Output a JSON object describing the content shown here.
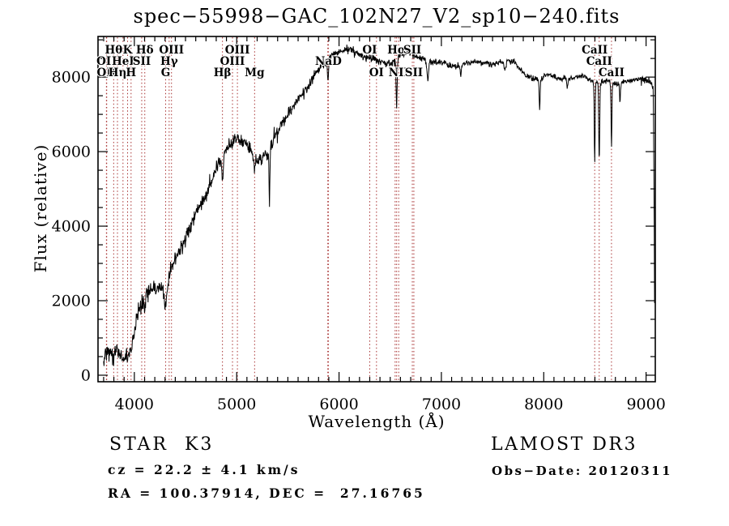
{
  "title": "spec−55998−GAC_102N27_V2_sp10−240.fits",
  "annotations": {
    "class_label": "STAR  K3",
    "cz": "cz = 22.2 ± 4.1 km/s",
    "radec": "RA = 100.37914, DEC =  27.16765",
    "survey": "LAMOST DR3",
    "obs_date": "Obs−Date: 20120311"
  },
  "chart_data": {
    "type": "line",
    "title": "spec−55998−GAC_102N27_V2_sp10−240.fits",
    "xlabel": "Wavelength (Å)",
    "ylabel": "Flux (relative)",
    "xlim": [
      3645,
      9090
    ],
    "ylim": [
      -175,
      9090
    ],
    "x_major_ticks": [
      4000,
      5000,
      6000,
      7000,
      8000,
      9000
    ],
    "x_minor_step": 100,
    "y_major_ticks": [
      0,
      2000,
      4000,
      6000,
      8000
    ],
    "y_minor_step": 500,
    "grid": false,
    "legend": "none",
    "series_color": "#000000",
    "marker_line_color": "#a83232",
    "spectral_lines": [
      {
        "label": "OII",
        "wavelength": 3727,
        "row": 2
      },
      {
        "label": "OII",
        "wavelength": 3730,
        "row": 3
      },
      {
        "label": "Hθ",
        "wavelength": 3798,
        "row": 1
      },
      {
        "label": "Hη",
        "wavelength": 3835,
        "row": 3
      },
      {
        "label": "HeI",
        "wavelength": 3889,
        "row": 2
      },
      {
        "label": "K",
        "wavelength": 3934,
        "row": 1
      },
      {
        "label": "H",
        "wavelength": 3968,
        "row": 3
      },
      {
        "label": "SII",
        "wavelength": 4072,
        "row": 2
      },
      {
        "label": "Hδ",
        "wavelength": 4102,
        "row": 1
      },
      {
        "label": "G",
        "wavelength": 4306,
        "row": 3
      },
      {
        "label": "Hγ",
        "wavelength": 4340,
        "row": 2
      },
      {
        "label": "OIII",
        "wavelength": 4363,
        "row": 1
      },
      {
        "label": "Hβ",
        "wavelength": 4861,
        "row": 3
      },
      {
        "label": "OIII",
        "wavelength": 4959,
        "row": 2
      },
      {
        "label": "OIII",
        "wavelength": 5007,
        "row": 1
      },
      {
        "label": "Mg",
        "wavelength": 5175,
        "row": 3
      },
      {
        "label": "",
        "wavelength": 5890,
        "row": 0
      },
      {
        "label": "NaD",
        "wavelength": 5896,
        "row": 2
      },
      {
        "label": "OI",
        "wavelength": 6300,
        "row": 1
      },
      {
        "label": "OI",
        "wavelength": 6366,
        "row": 3
      },
      {
        "label": "",
        "wavelength": 6548,
        "row": 0
      },
      {
        "label": "Hα",
        "wavelength": 6563,
        "row": 1
      },
      {
        "label": "NII",
        "wavelength": 6583,
        "row": 3
      },
      {
        "label": "SII",
        "wavelength": 6716,
        "row": 1
      },
      {
        "label": "SII",
        "wavelength": 6731,
        "row": 3
      },
      {
        "label": "CaII",
        "wavelength": 8498,
        "row": 1
      },
      {
        "label": "CaII",
        "wavelength": 8542,
        "row": 2
      },
      {
        "label": "CaII",
        "wavelength": 8662,
        "row": 3
      }
    ],
    "series": [
      {
        "name": "flux",
        "envelope_points": [
          [
            3700,
            350
          ],
          [
            3740,
            750
          ],
          [
            3770,
            520
          ],
          [
            3800,
            480
          ],
          [
            3830,
            680
          ],
          [
            3860,
            540
          ],
          [
            3890,
            430
          ],
          [
            3920,
            620
          ],
          [
            3950,
            560
          ],
          [
            3980,
            820
          ],
          [
            4010,
            1350
          ],
          [
            4050,
            1800
          ],
          [
            4100,
            2050
          ],
          [
            4150,
            2280
          ],
          [
            4210,
            2320
          ],
          [
            4260,
            2350
          ],
          [
            4305,
            2150
          ],
          [
            4345,
            2700
          ],
          [
            4390,
            3100
          ],
          [
            4440,
            3350
          ],
          [
            4490,
            3650
          ],
          [
            4550,
            3980
          ],
          [
            4600,
            4300
          ],
          [
            4650,
            4600
          ],
          [
            4700,
            4850
          ],
          [
            4750,
            5200
          ],
          [
            4800,
            5550
          ],
          [
            4850,
            5850
          ],
          [
            4900,
            6100
          ],
          [
            4950,
            6250
          ],
          [
            5000,
            6350
          ],
          [
            5060,
            6300
          ],
          [
            5110,
            6150
          ],
          [
            5160,
            5950
          ],
          [
            5210,
            5800
          ],
          [
            5260,
            5850
          ],
          [
            5310,
            5950
          ],
          [
            5360,
            6300
          ],
          [
            5410,
            6600
          ],
          [
            5460,
            6850
          ],
          [
            5510,
            7050
          ],
          [
            5560,
            7250
          ],
          [
            5610,
            7450
          ],
          [
            5660,
            7600
          ],
          [
            5710,
            7800
          ],
          [
            5760,
            8050
          ],
          [
            5810,
            8250
          ],
          [
            5860,
            8400
          ],
          [
            5910,
            8550
          ],
          [
            5960,
            8650
          ],
          [
            6010,
            8700
          ],
          [
            6060,
            8750
          ],
          [
            6110,
            8720
          ],
          [
            6160,
            8650
          ],
          [
            6210,
            8600
          ],
          [
            6260,
            8550
          ],
          [
            6310,
            8500
          ],
          [
            6360,
            8450
          ],
          [
            6410,
            8400
          ],
          [
            6460,
            8350
          ],
          [
            6510,
            8350
          ],
          [
            6560,
            8450
          ],
          [
            6610,
            8600
          ],
          [
            6660,
            8650
          ],
          [
            6710,
            8650
          ],
          [
            6760,
            8550
          ],
          [
            6810,
            8500
          ],
          [
            6860,
            8450
          ],
          [
            6910,
            8400
          ],
          [
            6960,
            8400
          ],
          [
            7010,
            8400
          ],
          [
            7060,
            8350
          ],
          [
            7110,
            8300
          ],
          [
            7160,
            8300
          ],
          [
            7210,
            8350
          ],
          [
            7260,
            8380
          ],
          [
            7310,
            8400
          ],
          [
            7360,
            8400
          ],
          [
            7410,
            8380
          ],
          [
            7460,
            8350
          ],
          [
            7510,
            8350
          ],
          [
            7560,
            8400
          ],
          [
            7610,
            8420
          ],
          [
            7660,
            8450
          ],
          [
            7710,
            8400
          ],
          [
            7760,
            8250
          ],
          [
            7810,
            8100
          ],
          [
            7860,
            8000
          ],
          [
            7910,
            7950
          ],
          [
            7960,
            7900
          ],
          [
            8010,
            8050
          ],
          [
            8060,
            8050
          ],
          [
            8110,
            8000
          ],
          [
            8160,
            7950
          ],
          [
            8210,
            7950
          ],
          [
            8260,
            7980
          ],
          [
            8310,
            8000
          ],
          [
            8360,
            8050
          ],
          [
            8410,
            8000
          ],
          [
            8460,
            7900
          ],
          [
            8510,
            7850
          ],
          [
            8560,
            7850
          ],
          [
            8610,
            7900
          ],
          [
            8660,
            7850
          ],
          [
            8710,
            7800
          ],
          [
            8760,
            7850
          ],
          [
            8810,
            7900
          ],
          [
            8860,
            7900
          ],
          [
            8910,
            7950
          ],
          [
            8960,
            7950
          ],
          [
            9010,
            7900
          ],
          [
            9050,
            7850
          ],
          [
            9070,
            7700
          ],
          [
            9078,
            5000
          ],
          [
            9085,
            600
          ]
        ],
        "noise_amplitude": [
          [
            3700,
            320
          ],
          [
            4000,
            300
          ],
          [
            4400,
            260
          ],
          [
            4800,
            230
          ],
          [
            5200,
            210
          ],
          [
            5600,
            185
          ],
          [
            6000,
            160
          ],
          [
            6400,
            135
          ],
          [
            6800,
            115
          ],
          [
            7200,
            105
          ],
          [
            7600,
            100
          ],
          [
            8000,
            95
          ],
          [
            8400,
            95
          ],
          [
            8800,
            100
          ],
          [
            9085,
            110
          ]
        ],
        "absorption_dips": [
          {
            "wavelength": 4101,
            "depth": 350,
            "width": 6
          },
          {
            "wavelength": 4305,
            "depth": 300,
            "width": 11
          },
          {
            "wavelength": 4861,
            "depth": 650,
            "width": 7
          },
          {
            "wavelength": 5172,
            "depth": 350,
            "width": 11
          },
          {
            "wavelength": 5320,
            "depth": 1500,
            "width": 4
          },
          {
            "wavelength": 5893,
            "depth": 600,
            "width": 6
          },
          {
            "wavelength": 6563,
            "depth": 1300,
            "width": 5
          },
          {
            "wavelength": 6867,
            "depth": 520,
            "width": 8
          },
          {
            "wavelength": 7190,
            "depth": 260,
            "width": 7
          },
          {
            "wavelength": 7620,
            "depth": 250,
            "width": 9
          },
          {
            "wavelength": 7960,
            "depth": 850,
            "width": 4
          },
          {
            "wavelength": 8230,
            "depth": 250,
            "width": 5
          },
          {
            "wavelength": 8498,
            "depth": 2200,
            "width": 4
          },
          {
            "wavelength": 8542,
            "depth": 2150,
            "width": 4.5
          },
          {
            "wavelength": 8662,
            "depth": 1750,
            "width": 4
          },
          {
            "wavelength": 8745,
            "depth": 520,
            "width": 4
          }
        ]
      }
    ]
  }
}
